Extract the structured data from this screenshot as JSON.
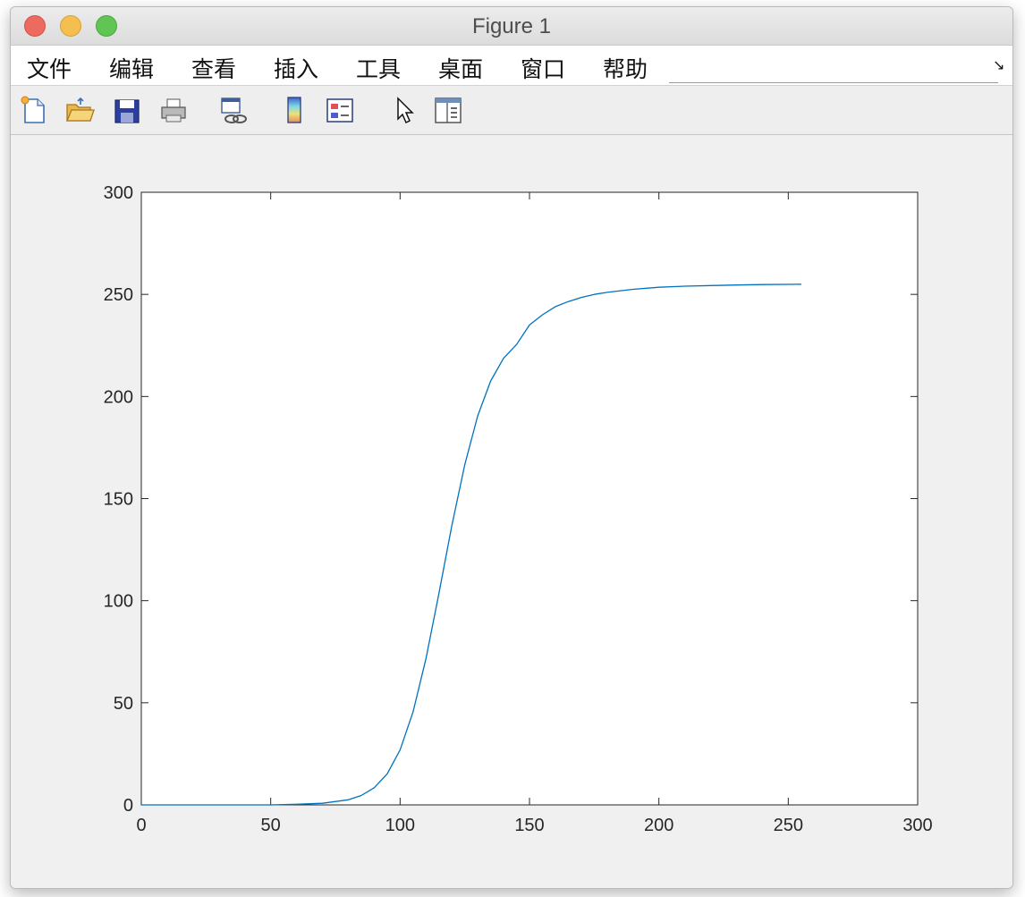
{
  "window": {
    "title": "Figure 1",
    "buttons": [
      "close",
      "minimize",
      "zoom"
    ]
  },
  "menubar": {
    "items": [
      {
        "label": "文件"
      },
      {
        "label": "编辑"
      },
      {
        "label": "查看"
      },
      {
        "label": "插入"
      },
      {
        "label": "工具"
      },
      {
        "label": "桌面"
      },
      {
        "label": "窗口"
      },
      {
        "label": "帮助"
      }
    ],
    "dock_arrow": "↘"
  },
  "toolbar": {
    "buttons": [
      {
        "icon": "new-figure-icon"
      },
      {
        "icon": "open-file-icon"
      },
      {
        "icon": "save-icon"
      },
      {
        "icon": "print-icon"
      },
      {
        "icon": "link-plot-icon"
      },
      {
        "icon": "colorbar-icon"
      },
      {
        "icon": "legend-icon"
      },
      {
        "icon": "edit-plot-pointer-icon"
      },
      {
        "icon": "property-inspector-icon"
      }
    ]
  },
  "chart_data": {
    "type": "line",
    "title": "",
    "xlabel": "",
    "ylabel": "",
    "xlim": [
      0,
      300
    ],
    "ylim": [
      0,
      300
    ],
    "xticks": [
      0,
      50,
      100,
      150,
      200,
      250,
      300
    ],
    "yticks": [
      0,
      50,
      100,
      150,
      200,
      250,
      300
    ],
    "grid": false,
    "line_color": "#0072bd",
    "series": [
      {
        "x": [
          0,
          50,
          60,
          70,
          80,
          85,
          90,
          95,
          100,
          105,
          110,
          115,
          120,
          125,
          130,
          135,
          140,
          145,
          150,
          155,
          160,
          165,
          170,
          175,
          180,
          190,
          200,
          210,
          220,
          230,
          240,
          255
        ],
        "values": [
          0,
          0,
          0.3,
          0.8,
          2.5,
          4.6,
          8.4,
          15.2,
          26.9,
          45.5,
          71.7,
          103.5,
          136.8,
          166.7,
          190.5,
          207.6,
          218.8,
          225.4,
          235,
          240,
          244,
          246.5,
          248.5,
          250,
          251,
          252.5,
          253.5,
          254,
          254.3,
          254.6,
          254.8,
          255
        ]
      }
    ]
  }
}
